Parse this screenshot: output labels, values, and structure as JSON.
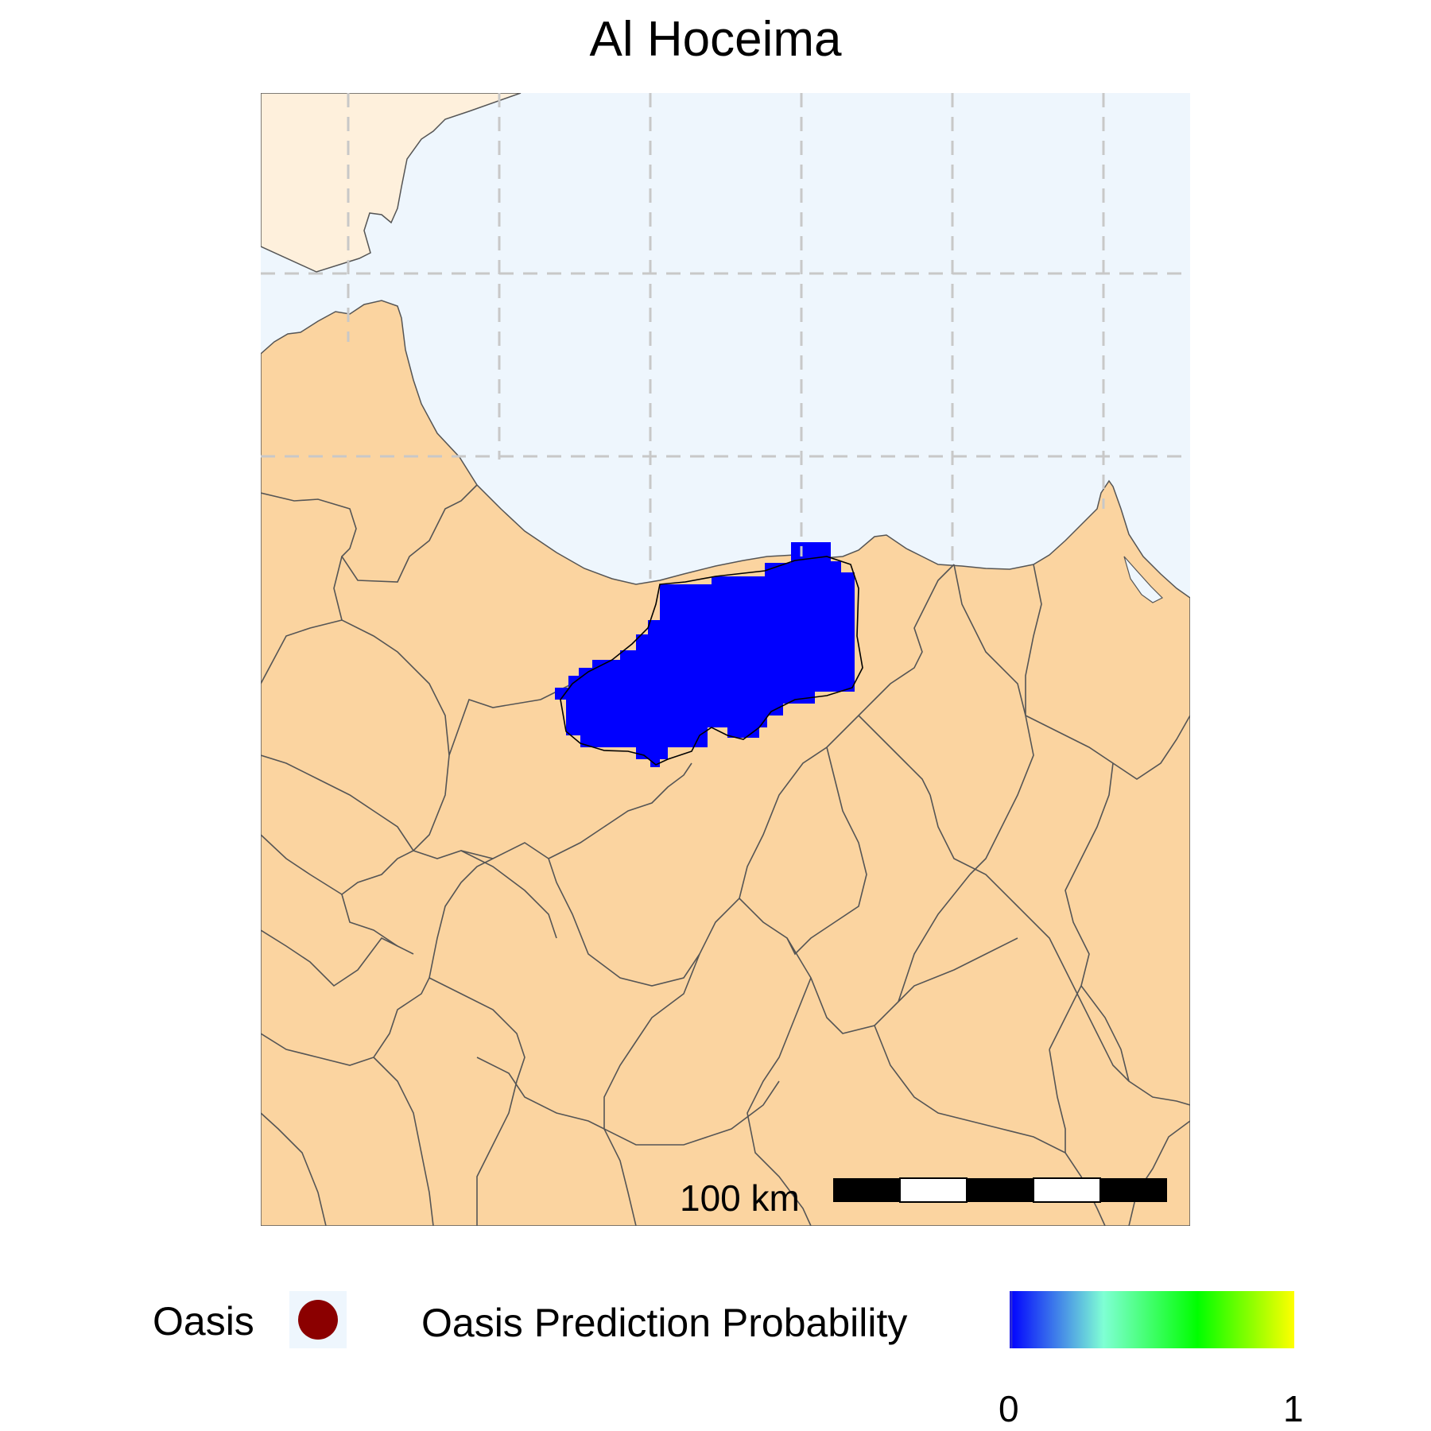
{
  "title": "Al Hoceima",
  "scale_bar": {
    "label": "100 km"
  },
  "legend": {
    "oasis_label": "Oasis",
    "oasis_color": "#8b0000",
    "probability_title": "Oasis Prediction Probability",
    "probability_min": "0",
    "probability_max": "1",
    "probability_colors": [
      "#0000ff",
      "#7fffd4",
      "#00ff00",
      "#ffff00"
    ]
  },
  "colors": {
    "land": "#fbd4a0",
    "sea": "#eef6fd",
    "spain_land": "#fef0dc",
    "boundary": "#555555",
    "gridline": "#c8c8c8",
    "prediction_area": "#0000ff"
  }
}
